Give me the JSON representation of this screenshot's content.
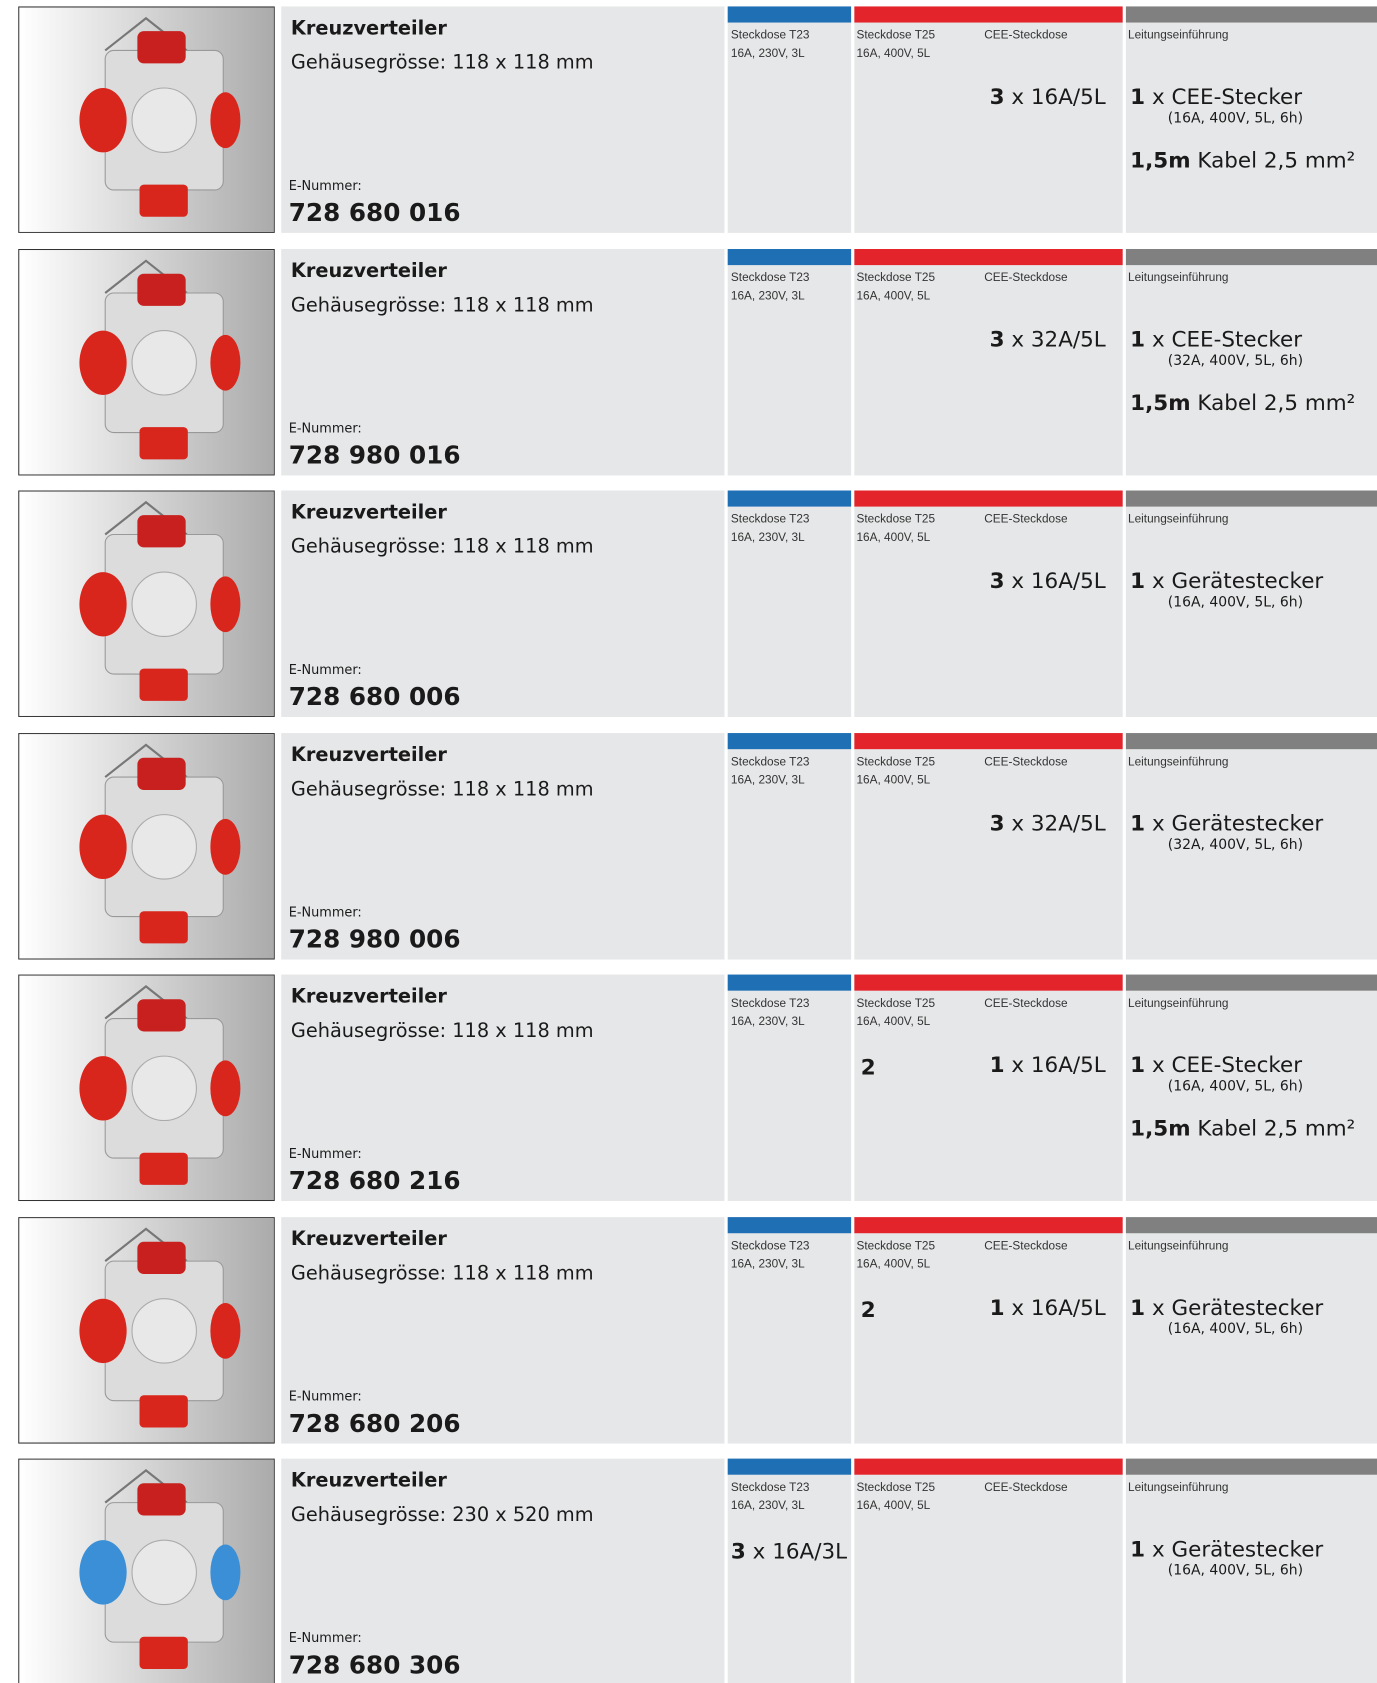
{
  "rows": [
    {
      "title": "Kreuzverteiler",
      "housing": "Gehäusegrösse: 118 x 118 mm",
      "e_label": "E-Nummer:",
      "e_number": "728 680 016",
      "headers": {
        "t23": [
          "Steckdose T23",
          "16A, 230V, 3L"
        ],
        "t25": [
          "Steckdose T25",
          "16A, 400V, 5L"
        ],
        "cee": "CEE-Steckdose",
        "inlet": "Leitungseinführung"
      },
      "cee_value": {
        "count": "3",
        "spec": "x 16A/5L"
      },
      "inlet": {
        "count": "1",
        "item": "x CEE-Stecker",
        "detail": "(16A, 400V, 5L, 6h)"
      },
      "cable": {
        "length": "1,5m",
        "spec": "Kabel 2,5 mm²"
      }
    },
    {
      "title": "Kreuzverteiler",
      "housing": "Gehäusegrösse: 118 x 118 mm",
      "e_label": "E-Nummer:",
      "e_number": "728 980 016",
      "headers": {
        "t23": [
          "Steckdose T23",
          "16A, 230V, 3L"
        ],
        "t25": [
          "Steckdose T25",
          "16A, 400V, 5L"
        ],
        "cee": "CEE-Steckdose",
        "inlet": "Leitungseinführung"
      },
      "cee_value": {
        "count": "3",
        "spec": "x 32A/5L"
      },
      "inlet": {
        "count": "1",
        "item": "x CEE-Stecker",
        "detail": "(32A, 400V, 5L, 6h)"
      },
      "cable": {
        "length": "1,5m",
        "spec": "Kabel 2,5 mm²"
      }
    },
    {
      "title": "Kreuzverteiler",
      "housing": "Gehäusegrösse: 118 x 118 mm",
      "e_label": "E-Nummer:",
      "e_number": "728 680 006",
      "headers": {
        "t23": [
          "Steckdose T23",
          "16A, 230V, 3L"
        ],
        "t25": [
          "Steckdose T25",
          "16A, 400V, 5L"
        ],
        "cee": "CEE-Steckdose",
        "inlet": "Leitungseinführung"
      },
      "cee_value": {
        "count": "3",
        "spec": "x 16A/5L"
      },
      "inlet": {
        "count": "1",
        "item": "x Gerätestecker",
        "detail": "(16A, 400V, 5L, 6h)"
      }
    },
    {
      "title": "Kreuzverteiler",
      "housing": "Gehäusegrösse: 118 x 118 mm",
      "e_label": "E-Nummer:",
      "e_number": "728 980 006",
      "headers": {
        "t23": [
          "Steckdose T23",
          "16A, 230V, 3L"
        ],
        "t25": [
          "Steckdose T25",
          "16A, 400V, 5L"
        ],
        "cee": "CEE-Steckdose",
        "inlet": "Leitungseinführung"
      },
      "cee_value": {
        "count": "3",
        "spec": "x 32A/5L"
      },
      "inlet": {
        "count": "1",
        "item": "x Gerätestecker",
        "detail": "(32A, 400V, 5L, 6h)"
      }
    },
    {
      "title": "Kreuzverteiler",
      "housing": "Gehäusegrösse: 118 x 118 mm",
      "e_label": "E-Nummer:",
      "e_number": "728 680 216",
      "headers": {
        "t23": [
          "Steckdose T23",
          "16A, 230V, 3L"
        ],
        "t25": [
          "Steckdose T25",
          "16A, 400V, 5L"
        ],
        "cee": "CEE-Steckdose",
        "inlet": "Leitungseinführung"
      },
      "t25_value": "2",
      "cee_value": {
        "count": "1",
        "spec": "x 16A/5L"
      },
      "inlet": {
        "count": "1",
        "item": "x CEE-Stecker",
        "detail": "(16A, 400V, 5L, 6h)"
      },
      "cable": {
        "length": "1,5m",
        "spec": "Kabel 2,5 mm²"
      }
    },
    {
      "title": "Kreuzverteiler",
      "housing": "Gehäusegrösse: 118 x 118 mm",
      "e_label": "E-Nummer:",
      "e_number": "728 680 206",
      "headers": {
        "t23": [
          "Steckdose T23",
          "16A, 230V, 3L"
        ],
        "t25": [
          "Steckdose T25",
          "16A, 400V, 5L"
        ],
        "cee": "CEE-Steckdose",
        "inlet": "Leitungseinführung"
      },
      "t25_value": "2",
      "cee_value": {
        "count": "1",
        "spec": "x 16A/5L"
      },
      "inlet": {
        "count": "1",
        "item": "x Gerätestecker",
        "detail": "(16A, 400V, 5L, 6h)"
      }
    },
    {
      "title": "Kreuzverteiler",
      "housing": "Gehäusegrösse: 230 x 520 mm",
      "e_label": "E-Nummer:",
      "e_number": "728 680 306",
      "headers": {
        "t23": [
          "Steckdose T23",
          "16A, 230V, 3L"
        ],
        "t25": [
          "Steckdose T25",
          "16A, 400V, 5L"
        ],
        "cee": "CEE-Steckdose",
        "inlet": "Leitungseinführung"
      },
      "t23_value": {
        "count": "3",
        "spec": "x 16A/3L"
      },
      "inlet": {
        "count": "1",
        "item": "x Gerätestecker",
        "detail": "(16A, 400V, 5L, 6h)"
      }
    }
  ]
}
